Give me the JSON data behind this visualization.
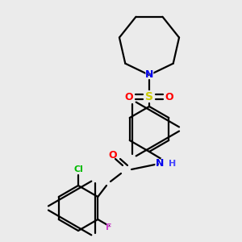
{
  "background_color": "#ebebeb",
  "atom_colors": {
    "N": "#0000ee",
    "O": "#ff0000",
    "S": "#cccc00",
    "Cl": "#00bb00",
    "F": "#cc44cc",
    "C": "#000000",
    "H": "#4444ff"
  },
  "bond_color": "#000000",
  "bond_lw": 1.6,
  "figsize": [
    3.0,
    3.0
  ],
  "dpi": 100
}
